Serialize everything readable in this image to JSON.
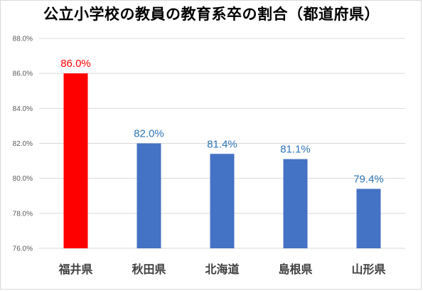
{
  "chart_data": {
    "type": "bar",
    "title": "公立小学校の教員の教育系卒の割合（都道府県）",
    "categories": [
      "福井県",
      "秋田県",
      "北海道",
      "島根県",
      "山形県"
    ],
    "values": [
      86.0,
      82.0,
      81.4,
      81.1,
      79.4
    ],
    "data_labels": [
      "86.0%",
      "82.0%",
      "81.4%",
      "81.1%",
      "79.4%"
    ],
    "bar_colors": [
      "#ff0000",
      "#4472c4",
      "#4472c4",
      "#4472c4",
      "#4472c4"
    ],
    "label_colors": [
      "#ff0000",
      "#2e75b6",
      "#2e75b6",
      "#2e75b6",
      "#2e75b6"
    ],
    "ylim": [
      76.0,
      88.0
    ],
    "yticks": [
      76.0,
      78.0,
      80.0,
      82.0,
      84.0,
      86.0,
      88.0
    ],
    "ytick_labels": [
      "76.0%",
      "78.0%",
      "80.0%",
      "82.0%",
      "84.0%",
      "86.0%",
      "88.0%"
    ],
    "xlabel": "",
    "ylabel": "",
    "grid": true,
    "legend": "none"
  }
}
